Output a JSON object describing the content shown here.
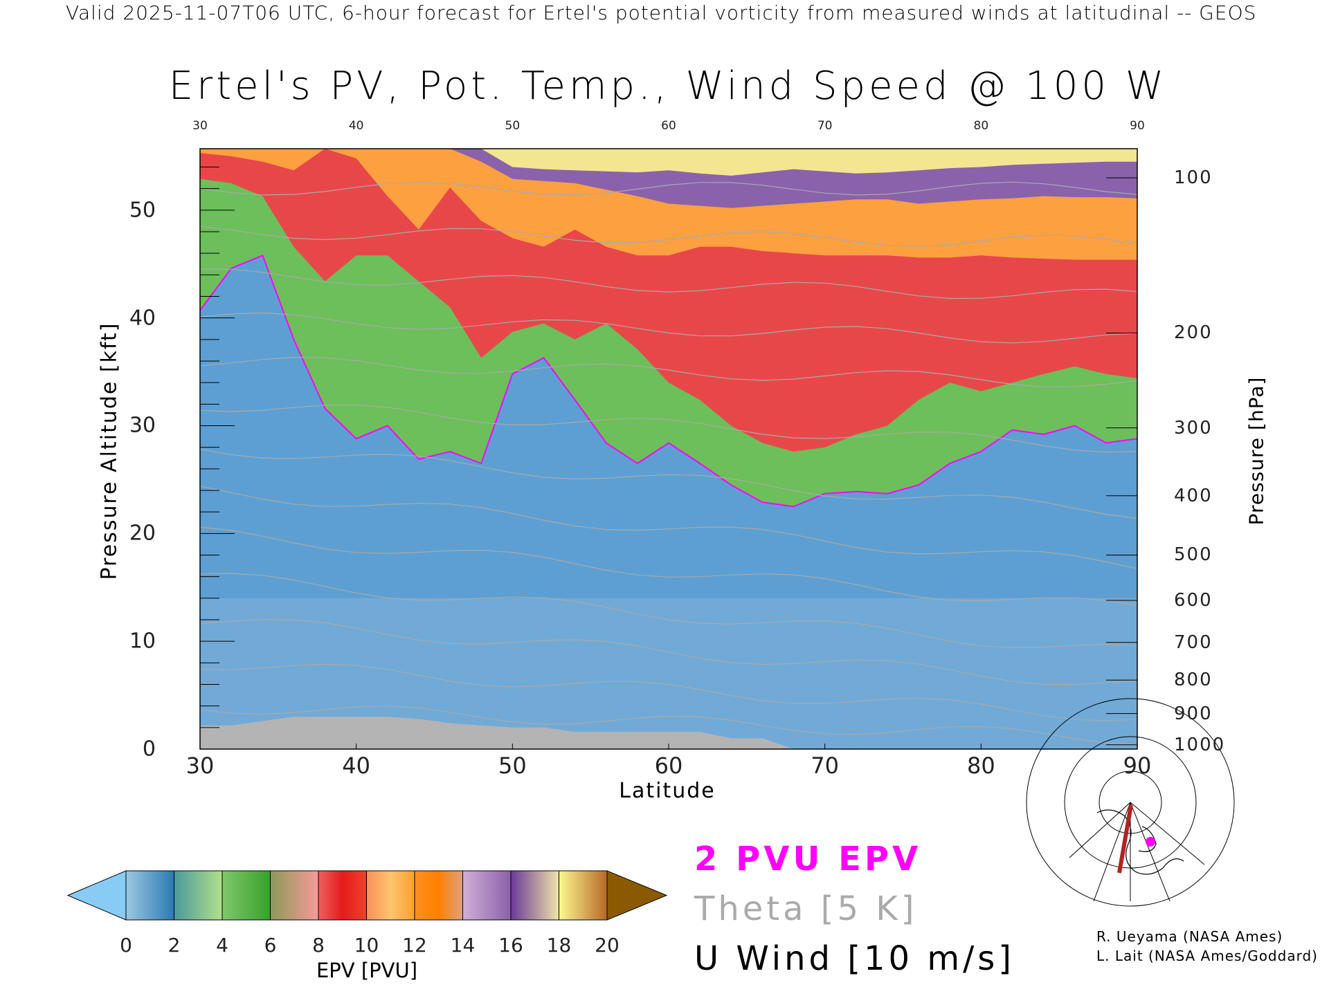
{
  "header": {
    "supertitle": "Valid 2025-11-07T06 UTC, 6-hour forecast for Ertel's potential vorticity from measured winds at latitudinal -- GEOS"
  },
  "chart_data": {
    "type": "heatmap",
    "title": "Ertel's PV, Pot. Temp., Wind Speed @ 100 W",
    "xlabel": "Latitude",
    "ylabel": "Pressure Altitude [kft]",
    "y2label": "Pressure [hPa]",
    "xlim": [
      30,
      90
    ],
    "ylim": [
      0,
      55.7
    ],
    "x_ticks": [
      "30",
      "40",
      "50",
      "60",
      "70",
      "80",
      "90"
    ],
    "y_ticks": [
      "0",
      "10",
      "20",
      "30",
      "40",
      "50"
    ],
    "pressure_ticks": [
      {
        "label": "100",
        "kft": 53.0
      },
      {
        "label": "200",
        "kft": 38.6
      },
      {
        "label": "300",
        "kft": 29.8
      },
      {
        "label": "400",
        "kft": 23.5
      },
      {
        "label": "500",
        "kft": 18.0
      },
      {
        "label": "600",
        "kft": 13.8
      },
      {
        "label": "700",
        "kft": 9.9
      },
      {
        "label": "800",
        "kft": 6.4
      },
      {
        "label": "900",
        "kft": 3.3
      },
      {
        "label": "1000",
        "kft": 0.4
      }
    ],
    "colorbar": {
      "label": "EPV [PVU]",
      "ticks": [
        "0",
        "2",
        "4",
        "6",
        "8",
        "10",
        "12",
        "14",
        "16",
        "18",
        "20"
      ],
      "under_color": "#88ccf5",
      "over_color": "#8b5a00",
      "segments": [
        [
          "#9ec8e0",
          "#2a7ab5"
        ],
        [
          "#4a9a9a",
          "#b2e08c"
        ],
        [
          "#80c86c",
          "#38a02c"
        ],
        [
          "#8a9a5a",
          "#f89a9a"
        ],
        [
          "#f06060",
          "#e41c1c",
          "#f04030"
        ],
        [
          "#f8905a",
          "#fec46e",
          "#fca030"
        ],
        [
          "#fe9020",
          "#ff8000",
          "#e0a080"
        ],
        [
          "#d0b0d8",
          "#8a60a8"
        ],
        [
          "#6a3a98",
          "#f0e4a8"
        ],
        [
          "#fafa90",
          "#b86828"
        ]
      ]
    },
    "latitudes": [
      30,
      32,
      34,
      36,
      38,
      40,
      42,
      44,
      46,
      48,
      50,
      52,
      54,
      56,
      58,
      60,
      62,
      64,
      66,
      68,
      70,
      72,
      74,
      76,
      78,
      80,
      82,
      84,
      86,
      88,
      90
    ],
    "pv_bands": [
      {
        "name": "PV > 2 PVU",
        "color": "#6cbf5a",
        "lower_kft": [
          40.7,
          44.6,
          45.8,
          38,
          31.6,
          28.8,
          30,
          26.9,
          27.6,
          26.5,
          34.8,
          36.3,
          32.4,
          28.4,
          26.5,
          28.4,
          26.5,
          24.5,
          22.9,
          22.5,
          23.7,
          23.9,
          23.7,
          24.5,
          26.5,
          27.6,
          29.6,
          29.2,
          30,
          28.4,
          28.8
        ]
      },
      {
        "name": "PV > 6 PVU",
        "color": "#e8474a",
        "lower_kft": [
          52.9,
          52.5,
          51.3,
          46.6,
          43.4,
          45.8,
          45.8,
          43.4,
          41,
          36.3,
          38.7,
          39.5,
          38,
          39.5,
          37.1,
          34,
          32.4,
          30,
          28.4,
          27.6,
          28,
          29.2,
          30,
          32.4,
          34,
          33.2,
          34,
          34.8,
          35.5,
          34.8,
          34.4
        ]
      },
      {
        "name": "PV > 10 PVU",
        "color": "#fca040",
        "lower_kft": [
          55.3,
          55,
          54.5,
          53.7,
          55.7,
          54.8,
          51.3,
          48.2,
          52.1,
          49,
          47.4,
          46.6,
          48.2,
          46.6,
          45.8,
          45.8,
          46.6,
          46.6,
          46.2,
          46,
          45.8,
          45.8,
          45.8,
          45.6,
          45.6,
          45.8,
          45.6,
          45.5,
          45.4,
          45.4,
          45.4
        ]
      },
      {
        "name": "PV > 14 PVU",
        "color": "#8a62ac",
        "lower_kft": [
          55.7,
          55.7,
          55.7,
          55.7,
          55.7,
          55.7,
          55.7,
          55.7,
          55.7,
          54.5,
          52.9,
          52.7,
          52.5,
          51.9,
          51.3,
          50.6,
          50.4,
          50.2,
          50.4,
          50.6,
          50.8,
          51,
          51,
          50.6,
          50.8,
          51,
          51.1,
          51.3,
          51.2,
          51.2,
          51.1
        ]
      },
      {
        "name": "PV > 18 PVU",
        "color": "#f3e690",
        "lower_kft": [
          55.7,
          55.7,
          55.7,
          55.7,
          55.7,
          55.7,
          55.7,
          55.7,
          55.7,
          55.7,
          54,
          53.8,
          53.7,
          53.6,
          53.5,
          53.7,
          53.4,
          53.2,
          53.5,
          53.8,
          53.6,
          53.4,
          53.5,
          53.7,
          53.9,
          54,
          54.2,
          54.3,
          54.4,
          54.5,
          54.5
        ]
      }
    ],
    "terrain_kft": [
      2.2,
      2.2,
      2.6,
      3.0,
      3.0,
      3.0,
      3.0,
      2.8,
      2.4,
      2.2,
      2.0,
      2.0,
      1.6,
      1.6,
      1.6,
      1.6,
      1.6,
      1.0,
      1.0,
      0,
      0,
      0,
      0,
      0,
      0,
      0,
      0,
      0,
      0,
      0,
      0
    ],
    "theta_levels_kft_at_30": [
      4,
      8,
      12,
      16,
      20,
      24,
      28,
      32,
      36,
      40,
      44,
      48,
      52
    ],
    "theta_levels_kft_at_90": [
      1,
      3,
      6,
      9,
      13,
      17,
      22,
      28,
      34,
      38,
      42,
      47,
      52
    ],
    "legend": {
      "pv": "2 PVU EPV",
      "theta": "Theta [5 K]",
      "uwind": "U Wind [10 m/s]",
      "pv_color": "#ff00ff",
      "theta_color": "#aaaaaa"
    }
  },
  "credits": {
    "line1": "R. Ueyama (NASA Ames)",
    "line2": "L. Lait (NASA Ames/Goddard)"
  }
}
